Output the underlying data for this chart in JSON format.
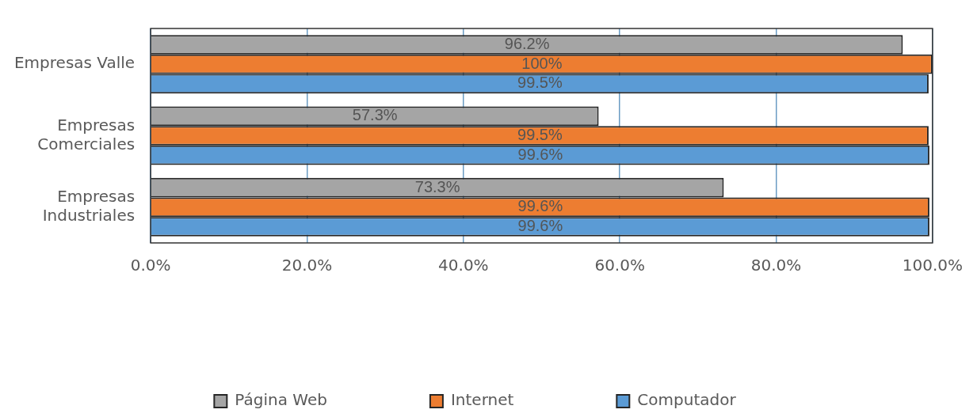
{
  "chart_data": {
    "type": "bar",
    "orientation": "horizontal",
    "categories": [
      "Empresas Valle",
      "Empresas Comerciales",
      "Empresas Industriales"
    ],
    "series": [
      {
        "name": "Página Web",
        "color": "#a5a5a5",
        "values": [
          96.2,
          57.3,
          73.3
        ],
        "value_labels": [
          "96.2%",
          "57.3%",
          "73.3%"
        ]
      },
      {
        "name": "Internet",
        "color": "#ed7d31",
        "values": [
          100,
          99.5,
          99.6
        ],
        "value_labels": [
          "100%",
          "99.5%",
          "99.6%"
        ]
      },
      {
        "name": "Computador",
        "color": "#5b9bd5",
        "values": [
          99.5,
          99.6,
          99.6
        ],
        "value_labels": [
          "99.5%",
          "99.6%",
          "99.6%"
        ]
      }
    ],
    "xlim": [
      0,
      100
    ],
    "xticks": [
      {
        "value": 0,
        "label": "0.0%"
      },
      {
        "value": 20,
        "label": "20.0%"
      },
      {
        "value": 40,
        "label": "40.0%"
      },
      {
        "value": 60,
        "label": "60.0%"
      },
      {
        "value": 80,
        "label": "80.0%"
      },
      {
        "value": 100,
        "label": "100.0%"
      }
    ],
    "grid": "x",
    "legend": "bottom"
  }
}
